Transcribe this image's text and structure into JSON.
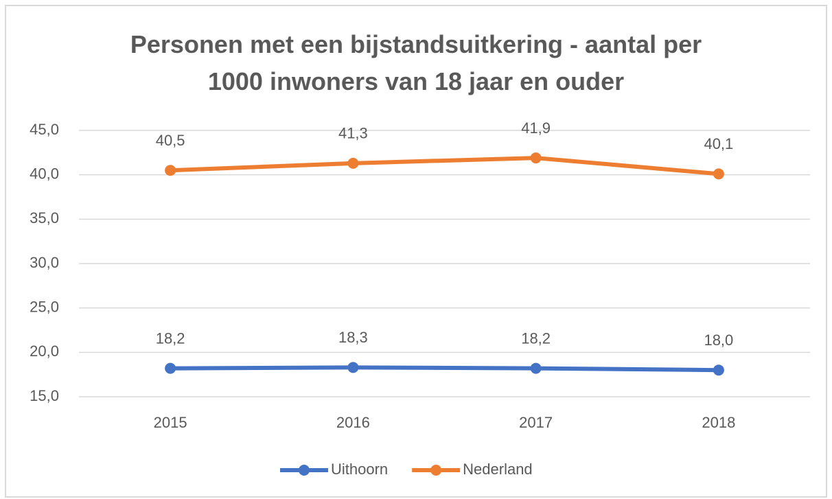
{
  "chart_data": {
    "type": "line",
    "title": "Personen met een bijstandsuitkering - aantal per 1000 inwoners van 18 jaar en ouder",
    "categories": [
      "2015",
      "2016",
      "2017",
      "2018"
    ],
    "series": [
      {
        "name": "Uithoorn",
        "color": "#4472c4",
        "values": [
          18.2,
          18.3,
          18.2,
          18.0
        ],
        "value_labels": [
          "18,2",
          "18,3",
          "18,2",
          "18,0"
        ]
      },
      {
        "name": "Nederland",
        "color": "#ed7d31",
        "values": [
          40.5,
          41.3,
          41.9,
          40.1
        ],
        "value_labels": [
          "40,5",
          "41,3",
          "41,9",
          "40,1"
        ]
      }
    ],
    "ylim": [
      15,
      45
    ],
    "yticks": [
      {
        "value": 15,
        "label": "15,0"
      },
      {
        "value": 20,
        "label": "20,0"
      },
      {
        "value": 25,
        "label": "25,0"
      },
      {
        "value": 30,
        "label": "30,0"
      },
      {
        "value": 35,
        "label": "35,0"
      },
      {
        "value": 40,
        "label": "40,0"
      },
      {
        "value": 45,
        "label": "45,0"
      }
    ],
    "grid": true,
    "legend": "bottom"
  }
}
